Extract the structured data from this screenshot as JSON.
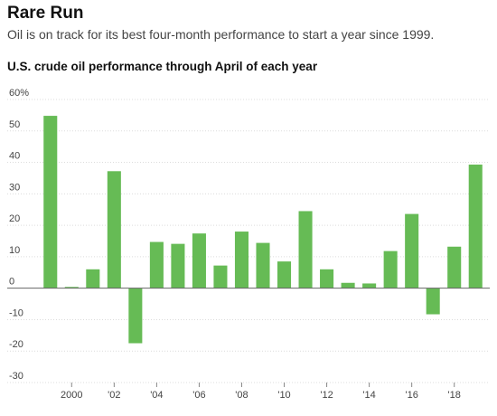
{
  "header": {
    "title": "Rare Run",
    "subtitle": "Oil is on track for its best four-month performance to start a year since 1999.",
    "chart_heading": "U.S. crude oil performance through April of each year"
  },
  "colors": {
    "bar": "#66bb55",
    "grid": "#dcdcdc",
    "zero_line": "#666666"
  },
  "chart_data": {
    "type": "bar",
    "categories": [
      "1999",
      "2000",
      "2001",
      "2002",
      "2003",
      "2004",
      "2005",
      "2006",
      "2007",
      "2008",
      "2009",
      "2010",
      "2011",
      "2012",
      "2013",
      "2014",
      "2015",
      "2016",
      "2017",
      "2018",
      "2019"
    ],
    "values": [
      54.8,
      0.4,
      6.0,
      37.2,
      -17.5,
      14.7,
      14.1,
      17.4,
      7.2,
      18.0,
      14.4,
      8.5,
      24.5,
      6.0,
      1.7,
      1.5,
      11.8,
      23.6,
      -8.3,
      13.2,
      39.3
    ],
    "y_ticks": [
      {
        "value": 60,
        "label": "60%"
      },
      {
        "value": 50,
        "label": "50"
      },
      {
        "value": 40,
        "label": "40"
      },
      {
        "value": 30,
        "label": "30"
      },
      {
        "value": 20,
        "label": "20"
      },
      {
        "value": 10,
        "label": "10"
      },
      {
        "value": 0,
        "label": "0"
      },
      {
        "value": -10,
        "label": "-10"
      },
      {
        "value": -20,
        "label": "-20"
      },
      {
        "value": -30,
        "label": "-30"
      }
    ],
    "x_tick_labels": [
      {
        "category": "2000",
        "label": "2000"
      },
      {
        "category": "2002",
        "label": "'02"
      },
      {
        "category": "2004",
        "label": "'04"
      },
      {
        "category": "2006",
        "label": "'06"
      },
      {
        "category": "2008",
        "label": "'08"
      },
      {
        "category": "2010",
        "label": "'10"
      },
      {
        "category": "2012",
        "label": "'12"
      },
      {
        "category": "2014",
        "label": "'14"
      },
      {
        "category": "2016",
        "label": "'16"
      },
      {
        "category": "2018",
        "label": "'18"
      }
    ],
    "ylim": [
      -30,
      60
    ],
    "grid": true
  }
}
